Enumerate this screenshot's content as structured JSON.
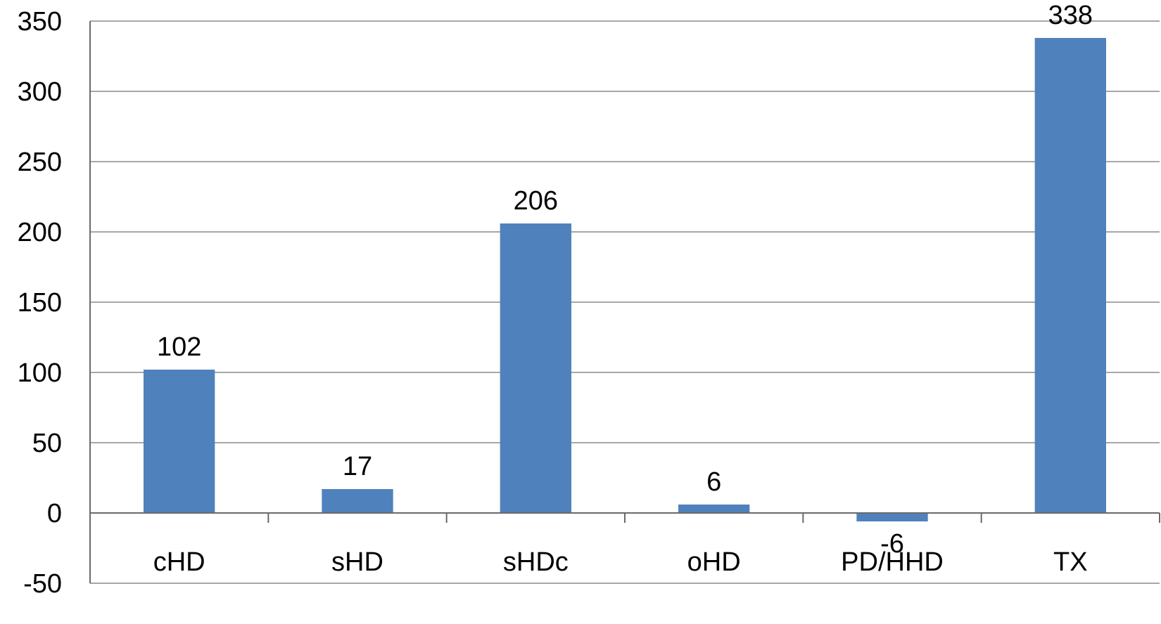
{
  "chart_data": {
    "type": "bar",
    "categories": [
      "cHD",
      "sHD",
      "sHDc",
      "oHD",
      "PD/HHD",
      "TX"
    ],
    "values": [
      102,
      17,
      206,
      6,
      -6,
      338
    ],
    "data_labels": [
      "102",
      "17",
      "206",
      "6",
      "-6",
      "338"
    ],
    "title": "",
    "xlabel": "",
    "ylabel": "",
    "ylim": [
      -50,
      350
    ],
    "yticks": [
      -50,
      0,
      50,
      100,
      150,
      200,
      250,
      300,
      350
    ],
    "ytick_labels": [
      "-50",
      "0",
      "50",
      "100",
      "150",
      "200",
      "250",
      "300",
      "350"
    ],
    "grid": true,
    "legend": "none",
    "bar_color": "#4f81bd"
  }
}
